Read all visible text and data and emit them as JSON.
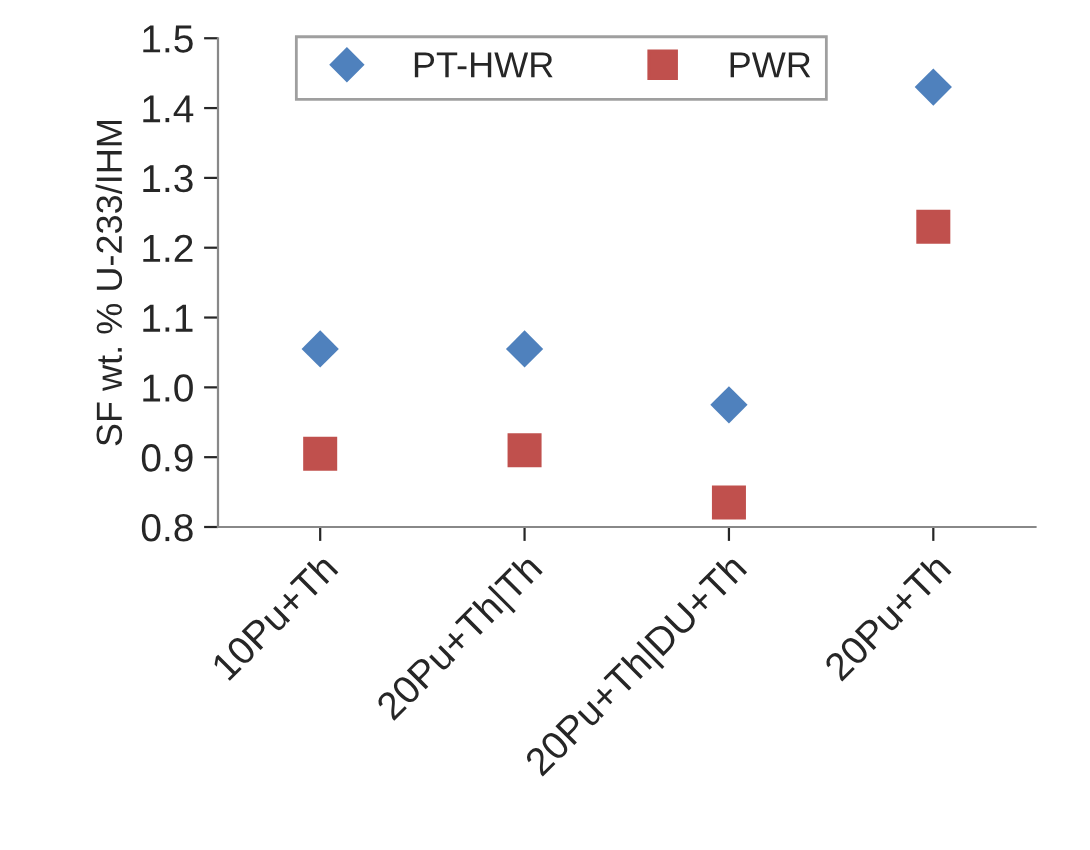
{
  "chart_data": {
    "type": "scatter",
    "ylabel": "SF wt. % U-233/IHM",
    "categories": [
      "10Pu+Th",
      "20Pu+Th|Th",
      "20Pu+Th|DU+Th",
      "20Pu+Th"
    ],
    "series": [
      {
        "name": "PT-HWR",
        "color": "#4f81bd",
        "marker": "diamond",
        "values": [
          1.055,
          1.055,
          0.975,
          1.43
        ]
      },
      {
        "name": "PWR",
        "color": "#c0504d",
        "marker": "square",
        "values": [
          0.905,
          0.91,
          0.835,
          1.23
        ]
      }
    ],
    "ylim": [
      0.8,
      1.5
    ],
    "yticks": [
      {
        "value": 0.8,
        "label": "0.8"
      },
      {
        "value": 0.9,
        "label": "0.9"
      },
      {
        "value": 1.0,
        "label": "1.0"
      },
      {
        "value": 1.1,
        "label": "1.1"
      },
      {
        "value": 1.2,
        "label": "1.2"
      },
      {
        "value": 1.3,
        "label": "1.3"
      },
      {
        "value": 1.4,
        "label": "1.4"
      },
      {
        "value": 1.5,
        "label": "1.5"
      }
    ],
    "grid": false,
    "legend": "top"
  }
}
